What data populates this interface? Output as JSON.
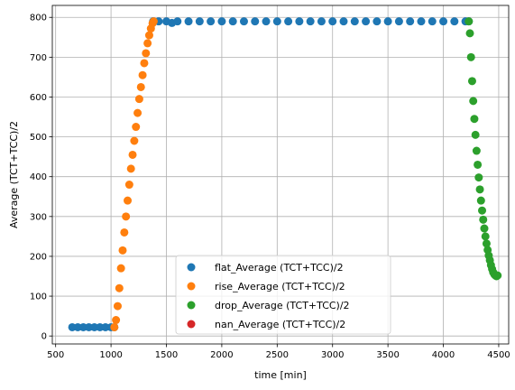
{
  "chart_data": {
    "type": "scatter",
    "title": "",
    "xlabel": "time [min]",
    "ylabel": "Average (TCT+TCC)/2",
    "xlim": [
      470,
      4590
    ],
    "ylim": [
      -20,
      830
    ],
    "xticks": [
      500,
      1000,
      1500,
      2000,
      2500,
      3000,
      3500,
      4000,
      4500
    ],
    "yticks": [
      0,
      100,
      200,
      300,
      400,
      500,
      600,
      700,
      800
    ],
    "grid": true,
    "legend_position": "lower-center",
    "series": [
      {
        "name": "flat_Average (TCT+TCC)/2",
        "color": "#1f77b4",
        "points": [
          [
            650,
            22
          ],
          [
            700,
            22
          ],
          [
            750,
            22
          ],
          [
            800,
            22
          ],
          [
            850,
            22
          ],
          [
            900,
            22
          ],
          [
            950,
            22
          ],
          [
            1000,
            22
          ],
          [
            1030,
            22
          ],
          [
            1380,
            790
          ],
          [
            1430,
            790
          ],
          [
            1500,
            790
          ],
          [
            1550,
            786
          ],
          [
            1600,
            790
          ],
          [
            1700,
            790
          ],
          [
            1800,
            790
          ],
          [
            1900,
            790
          ],
          [
            2000,
            790
          ],
          [
            2100,
            790
          ],
          [
            2200,
            790
          ],
          [
            2300,
            790
          ],
          [
            2400,
            790
          ],
          [
            2500,
            790
          ],
          [
            2600,
            790
          ],
          [
            2700,
            790
          ],
          [
            2800,
            790
          ],
          [
            2900,
            790
          ],
          [
            3000,
            790
          ],
          [
            3100,
            790
          ],
          [
            3200,
            790
          ],
          [
            3300,
            790
          ],
          [
            3400,
            790
          ],
          [
            3500,
            790
          ],
          [
            3600,
            790
          ],
          [
            3700,
            790
          ],
          [
            3800,
            790
          ],
          [
            3900,
            790
          ],
          [
            4000,
            790
          ],
          [
            4100,
            790
          ],
          [
            4200,
            790
          ],
          [
            4230,
            790
          ]
        ]
      },
      {
        "name": "rise_Average (TCT+TCC)/2",
        "color": "#ff7f0e",
        "points": [
          [
            1030,
            22
          ],
          [
            1045,
            40
          ],
          [
            1060,
            75
          ],
          [
            1075,
            120
          ],
          [
            1090,
            170
          ],
          [
            1105,
            215
          ],
          [
            1120,
            260
          ],
          [
            1135,
            300
          ],
          [
            1150,
            340
          ],
          [
            1165,
            380
          ],
          [
            1180,
            420
          ],
          [
            1195,
            455
          ],
          [
            1210,
            490
          ],
          [
            1225,
            525
          ],
          [
            1240,
            560
          ],
          [
            1255,
            595
          ],
          [
            1270,
            625
          ],
          [
            1285,
            655
          ],
          [
            1300,
            685
          ],
          [
            1315,
            710
          ],
          [
            1330,
            735
          ],
          [
            1345,
            755
          ],
          [
            1360,
            772
          ],
          [
            1375,
            785
          ],
          [
            1385,
            790
          ]
        ]
      },
      {
        "name": "drop_Average (TCT+TCC)/2",
        "color": "#2ca02c",
        "points": [
          [
            4230,
            790
          ],
          [
            4240,
            760
          ],
          [
            4250,
            700
          ],
          [
            4260,
            640
          ],
          [
            4270,
            590
          ],
          [
            4280,
            545
          ],
          [
            4290,
            505
          ],
          [
            4300,
            465
          ],
          [
            4310,
            430
          ],
          [
            4320,
            398
          ],
          [
            4330,
            368
          ],
          [
            4340,
            340
          ],
          [
            4350,
            315
          ],
          [
            4360,
            292
          ],
          [
            4370,
            270
          ],
          [
            4380,
            250
          ],
          [
            4390,
            232
          ],
          [
            4400,
            216
          ],
          [
            4410,
            202
          ],
          [
            4420,
            190
          ],
          [
            4430,
            178
          ],
          [
            4440,
            168
          ],
          [
            4450,
            160
          ],
          [
            4460,
            155
          ],
          [
            4470,
            152
          ],
          [
            4480,
            150
          ],
          [
            4490,
            152
          ]
        ]
      },
      {
        "name": "nan_Average (TCT+TCC)/2",
        "color": "#d62728",
        "points": []
      }
    ]
  }
}
